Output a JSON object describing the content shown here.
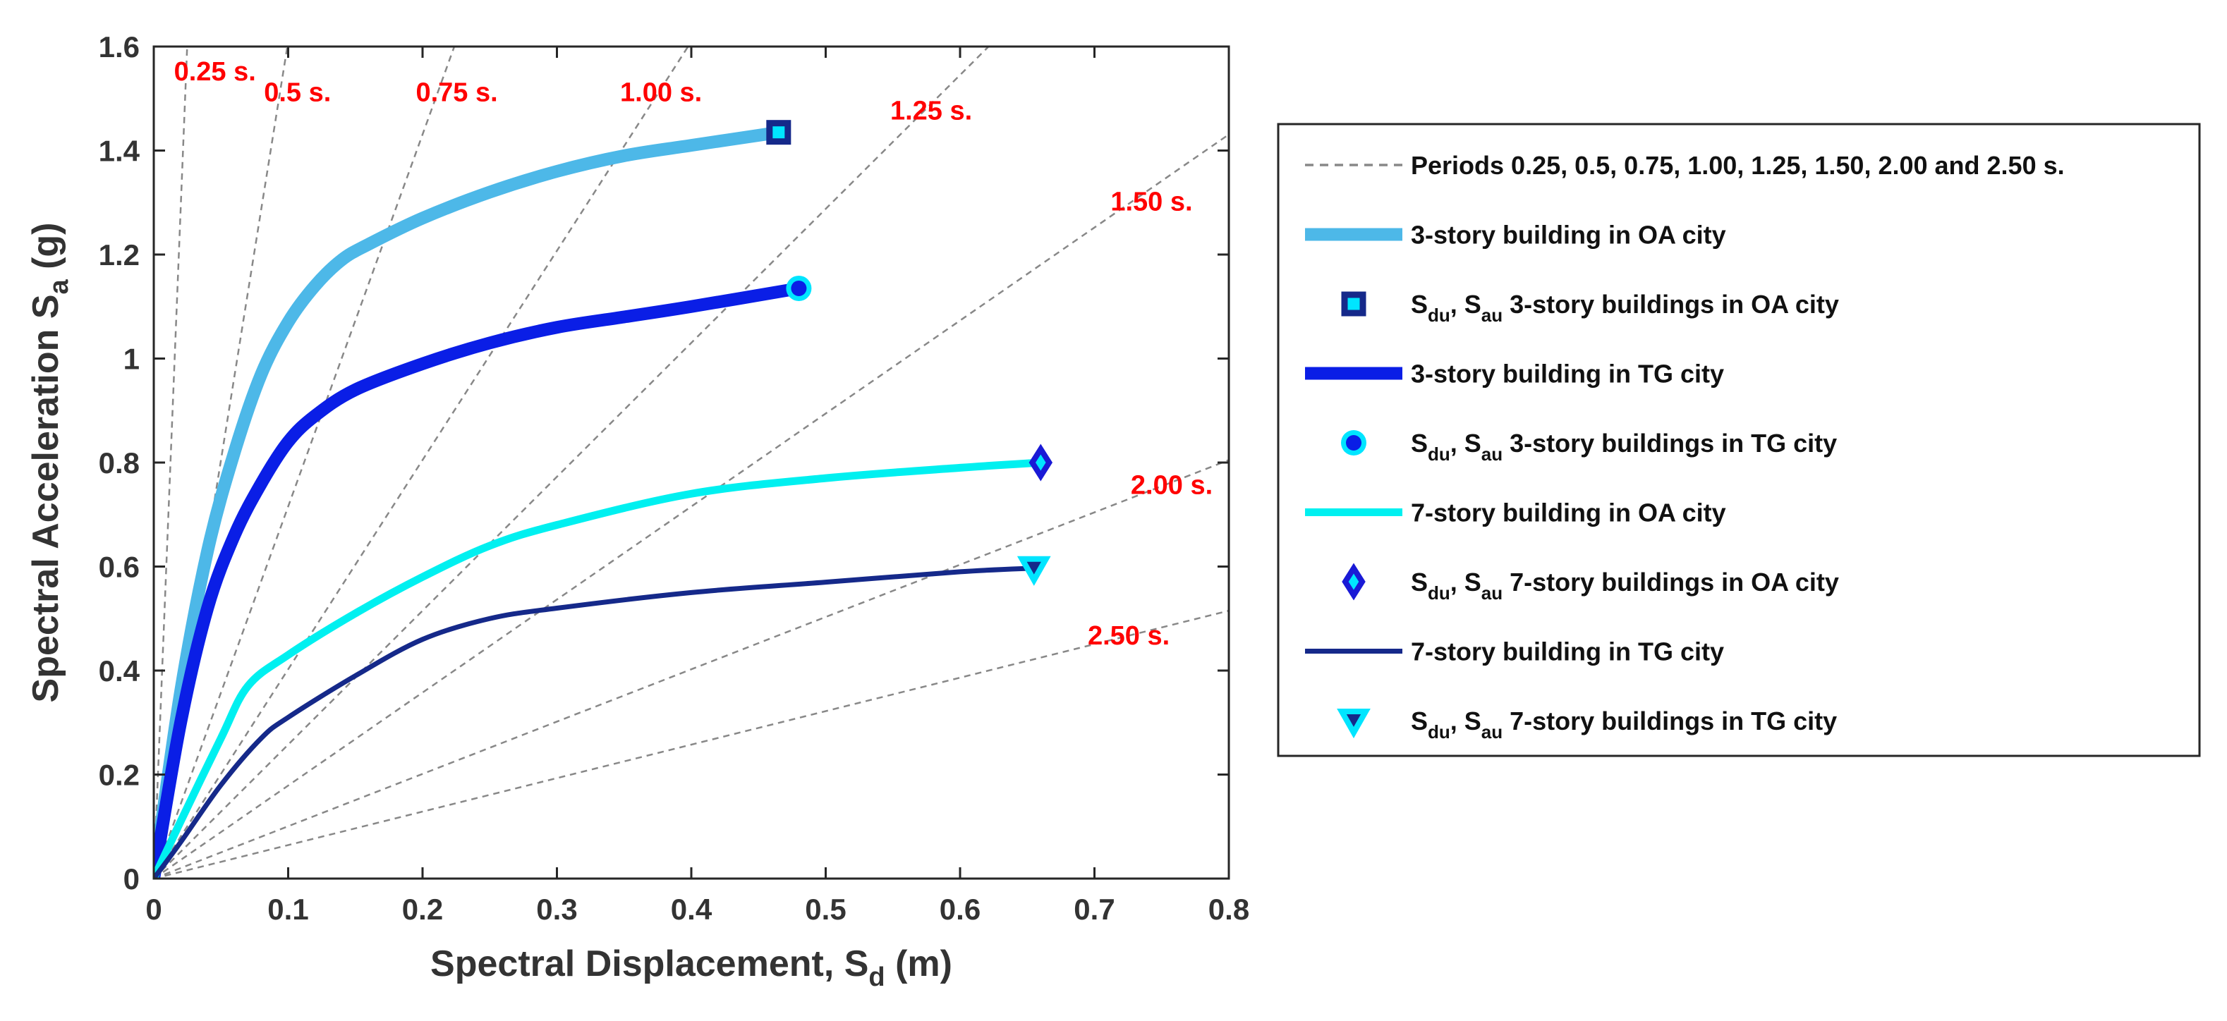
{
  "chart_data": {
    "type": "line",
    "xlabel": "Spectral Displacement, S",
    "xlabel_sub": "d",
    "xlabel_unit": " (m)",
    "ylabel": "Spectral Acceleration  S",
    "ylabel_sub": "a",
    "ylabel_unit": " (g)",
    "xlim": [
      0,
      0.8
    ],
    "ylim": [
      0,
      1.6
    ],
    "xticks": [
      0,
      0.1,
      0.2,
      0.3,
      0.4,
      0.5,
      0.6,
      0.7,
      0.8
    ],
    "xtick_labels": [
      "0",
      "0.1",
      "0.2",
      "0.3",
      "0.4",
      "0.5",
      "0.6",
      "0.7",
      "0.8"
    ],
    "yticks": [
      0,
      0.2,
      0.4,
      0.6,
      0.8,
      1.0,
      1.2,
      1.4,
      1.6
    ],
    "ytick_labels": [
      "0",
      "0.2",
      "0.4",
      "0.6",
      "0.8",
      "1",
      "1.2",
      "1.4",
      "1.6"
    ],
    "grid": false,
    "legend_position": "right",
    "period_lines": {
      "periods": [
        0.25,
        0.5,
        0.75,
        1.0,
        1.25,
        1.5,
        2.0,
        2.5
      ],
      "labels": [
        {
          "text": "0.25 s.",
          "x": 0.015,
          "y": 1.535
        },
        {
          "text": "0.5 s.",
          "x": 0.082,
          "y": 1.495
        },
        {
          "text": "0.75 s.",
          "x": 0.195,
          "y": 1.495
        },
        {
          "text": "1.00 s.",
          "x": 0.347,
          "y": 1.495
        },
        {
          "text": "1.25 s.",
          "x": 0.548,
          "y": 1.46
        },
        {
          "text": "1.50 s.",
          "x": 0.712,
          "y": 1.285
        },
        {
          "text": "2.00 s.",
          "x": 0.727,
          "y": 0.74
        },
        {
          "text": "2.50 s.",
          "x": 0.695,
          "y": 0.45
        }
      ],
      "color": "#888888"
    },
    "series": [
      {
        "name": "3-story building in OA city",
        "color": "#4db8e8",
        "width": 18,
        "x": [
          0,
          0.02,
          0.04,
          0.06,
          0.08,
          0.1,
          0.12,
          0.14,
          0.16,
          0.2,
          0.25,
          0.3,
          0.35,
          0.4,
          0.465
        ],
        "y": [
          0,
          0.36,
          0.63,
          0.82,
          0.97,
          1.07,
          1.14,
          1.19,
          1.22,
          1.27,
          1.32,
          1.36,
          1.39,
          1.41,
          1.435
        ]
      },
      {
        "name": "3-story building in TG city",
        "color": "#0a1ee6",
        "width": 18,
        "x": [
          0,
          0.02,
          0.04,
          0.06,
          0.08,
          0.1,
          0.12,
          0.15,
          0.2,
          0.25,
          0.3,
          0.35,
          0.4,
          0.48
        ],
        "y": [
          0,
          0.3,
          0.52,
          0.66,
          0.76,
          0.84,
          0.89,
          0.94,
          0.99,
          1.03,
          1.06,
          1.08,
          1.1,
          1.135
        ]
      },
      {
        "name": "7-story building in OA city",
        "color": "#00f0f0",
        "width": 11,
        "x": [
          0,
          0.02,
          0.05,
          0.07,
          0.1,
          0.15,
          0.2,
          0.25,
          0.3,
          0.4,
          0.5,
          0.6,
          0.66
        ],
        "y": [
          0,
          0.11,
          0.27,
          0.37,
          0.43,
          0.51,
          0.58,
          0.64,
          0.68,
          0.74,
          0.77,
          0.79,
          0.8
        ]
      },
      {
        "name": "7-story building in TG city",
        "color": "#15298a",
        "width": 7,
        "x": [
          0,
          0.02,
          0.05,
          0.08,
          0.1,
          0.15,
          0.2,
          0.25,
          0.3,
          0.4,
          0.5,
          0.6,
          0.655
        ],
        "y": [
          0,
          0.07,
          0.18,
          0.27,
          0.31,
          0.39,
          0.46,
          0.5,
          0.52,
          0.55,
          0.57,
          0.59,
          0.597
        ]
      }
    ],
    "markers": [
      {
        "name": "S_du, S_au 3-story buildings in OA city",
        "shape": "square",
        "x": 0.465,
        "y": 1.435,
        "fill": "#00e5ff",
        "stroke": "#15298a"
      },
      {
        "name": "S_du, S_au 3-story buildings in TG city",
        "shape": "circle",
        "x": 0.48,
        "y": 1.135,
        "fill": "#0a1ee6",
        "stroke": "#00e5ff"
      },
      {
        "name": "S_du, S_au 7-story buildings in OA city",
        "shape": "diamond",
        "x": 0.66,
        "y": 0.8,
        "fill": "#00e5ff",
        "stroke": "#1a1ad6"
      },
      {
        "name": "S_du, S_au 7-story buildings in TG city",
        "shape": "triangle-down",
        "x": 0.655,
        "y": 0.597,
        "fill": "#15298a",
        "stroke": "#00e5ff"
      }
    ],
    "legend": [
      {
        "kind": "dashed",
        "text": "Periods 0.25, 0.5, 0.75, 1.00, 1.25, 1.50, 2.00 and 2.50  s.",
        "color": "#888888"
      },
      {
        "kind": "line",
        "series": 0,
        "text": "3-story building in OA city"
      },
      {
        "kind": "marker",
        "marker": 0,
        "pre": "S",
        "sub1": "du",
        "mid": ", S",
        "sub2": "au",
        "post": " 3-story buildings in OA city"
      },
      {
        "kind": "line",
        "series": 1,
        "text": "3-story building in TG city"
      },
      {
        "kind": "marker",
        "marker": 1,
        "pre": "S",
        "sub1": "du",
        "mid": ", S",
        "sub2": "au",
        "post": " 3-story buildings in TG city"
      },
      {
        "kind": "line",
        "series": 2,
        "text": "7-story building in OA city"
      },
      {
        "kind": "marker",
        "marker": 2,
        "pre": "S",
        "sub1": "du",
        "mid": ", S",
        "sub2": "au",
        "post": " 7-story buildings in OA city"
      },
      {
        "kind": "line",
        "series": 3,
        "text": "7-story building in TG city"
      },
      {
        "kind": "marker",
        "marker": 3,
        "pre": "S",
        "sub1": "du",
        "mid": ", S",
        "sub2": "au",
        "post": " 7-story buildings in TG city"
      }
    ]
  }
}
